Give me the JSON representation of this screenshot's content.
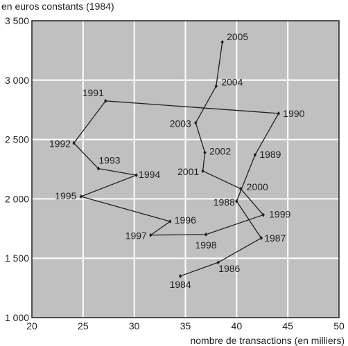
{
  "chart_data": {
    "type": "line",
    "xlabel": "nombre de transactions (en milliers)",
    "ylabel": "en euros constants (1984)",
    "xlim": [
      20,
      50
    ],
    "ylim": [
      1000,
      3500
    ],
    "x_ticks": [
      20,
      25,
      30,
      35,
      40,
      45,
      50
    ],
    "x_tick_labels": [
      "20",
      "25",
      "30",
      "35",
      "40",
      "45",
      "50"
    ],
    "y_ticks": [
      1000,
      1500,
      2000,
      2500,
      3000,
      3500
    ],
    "y_tick_labels": [
      "1 000",
      "1 500",
      "2 000",
      "2 500",
      "3 000",
      "3 500"
    ],
    "grid": true,
    "plot_background": "#c0c0c0",
    "grid_color": "#ffffff",
    "line_color": "#231f20",
    "points": [
      {
        "label": "1984",
        "x": 34.5,
        "y": 1350
      },
      {
        "label": "1986",
        "x": 38.2,
        "y": 1465
      },
      {
        "label": "1987",
        "x": 42.4,
        "y": 1670
      },
      {
        "label": "1988",
        "x": 40.0,
        "y": 1980
      },
      {
        "label": "1989",
        "x": 41.8,
        "y": 2370
      },
      {
        "label": "1990",
        "x": 44.1,
        "y": 2720
      },
      {
        "label": "1991",
        "x": 27.2,
        "y": 2825
      },
      {
        "label": "1992",
        "x": 24.1,
        "y": 2470
      },
      {
        "label": "1993",
        "x": 26.5,
        "y": 2255
      },
      {
        "label": "1994",
        "x": 30.2,
        "y": 2200
      },
      {
        "label": "1995",
        "x": 24.8,
        "y": 2020
      },
      {
        "label": "1996",
        "x": 33.5,
        "y": 1810
      },
      {
        "label": "1997",
        "x": 31.6,
        "y": 1695
      },
      {
        "label": "1998",
        "x": 37.0,
        "y": 1700
      },
      {
        "label": "1999",
        "x": 42.6,
        "y": 1865
      },
      {
        "label": "2000",
        "x": 40.4,
        "y": 2085
      },
      {
        "label": "2001",
        "x": 36.7,
        "y": 2235
      },
      {
        "label": "2002",
        "x": 36.9,
        "y": 2390
      },
      {
        "label": "2003",
        "x": 36.0,
        "y": 2640
      },
      {
        "label": "2004",
        "x": 38.0,
        "y": 2950
      },
      {
        "label": "2005",
        "x": 38.6,
        "y": 3320
      }
    ]
  }
}
